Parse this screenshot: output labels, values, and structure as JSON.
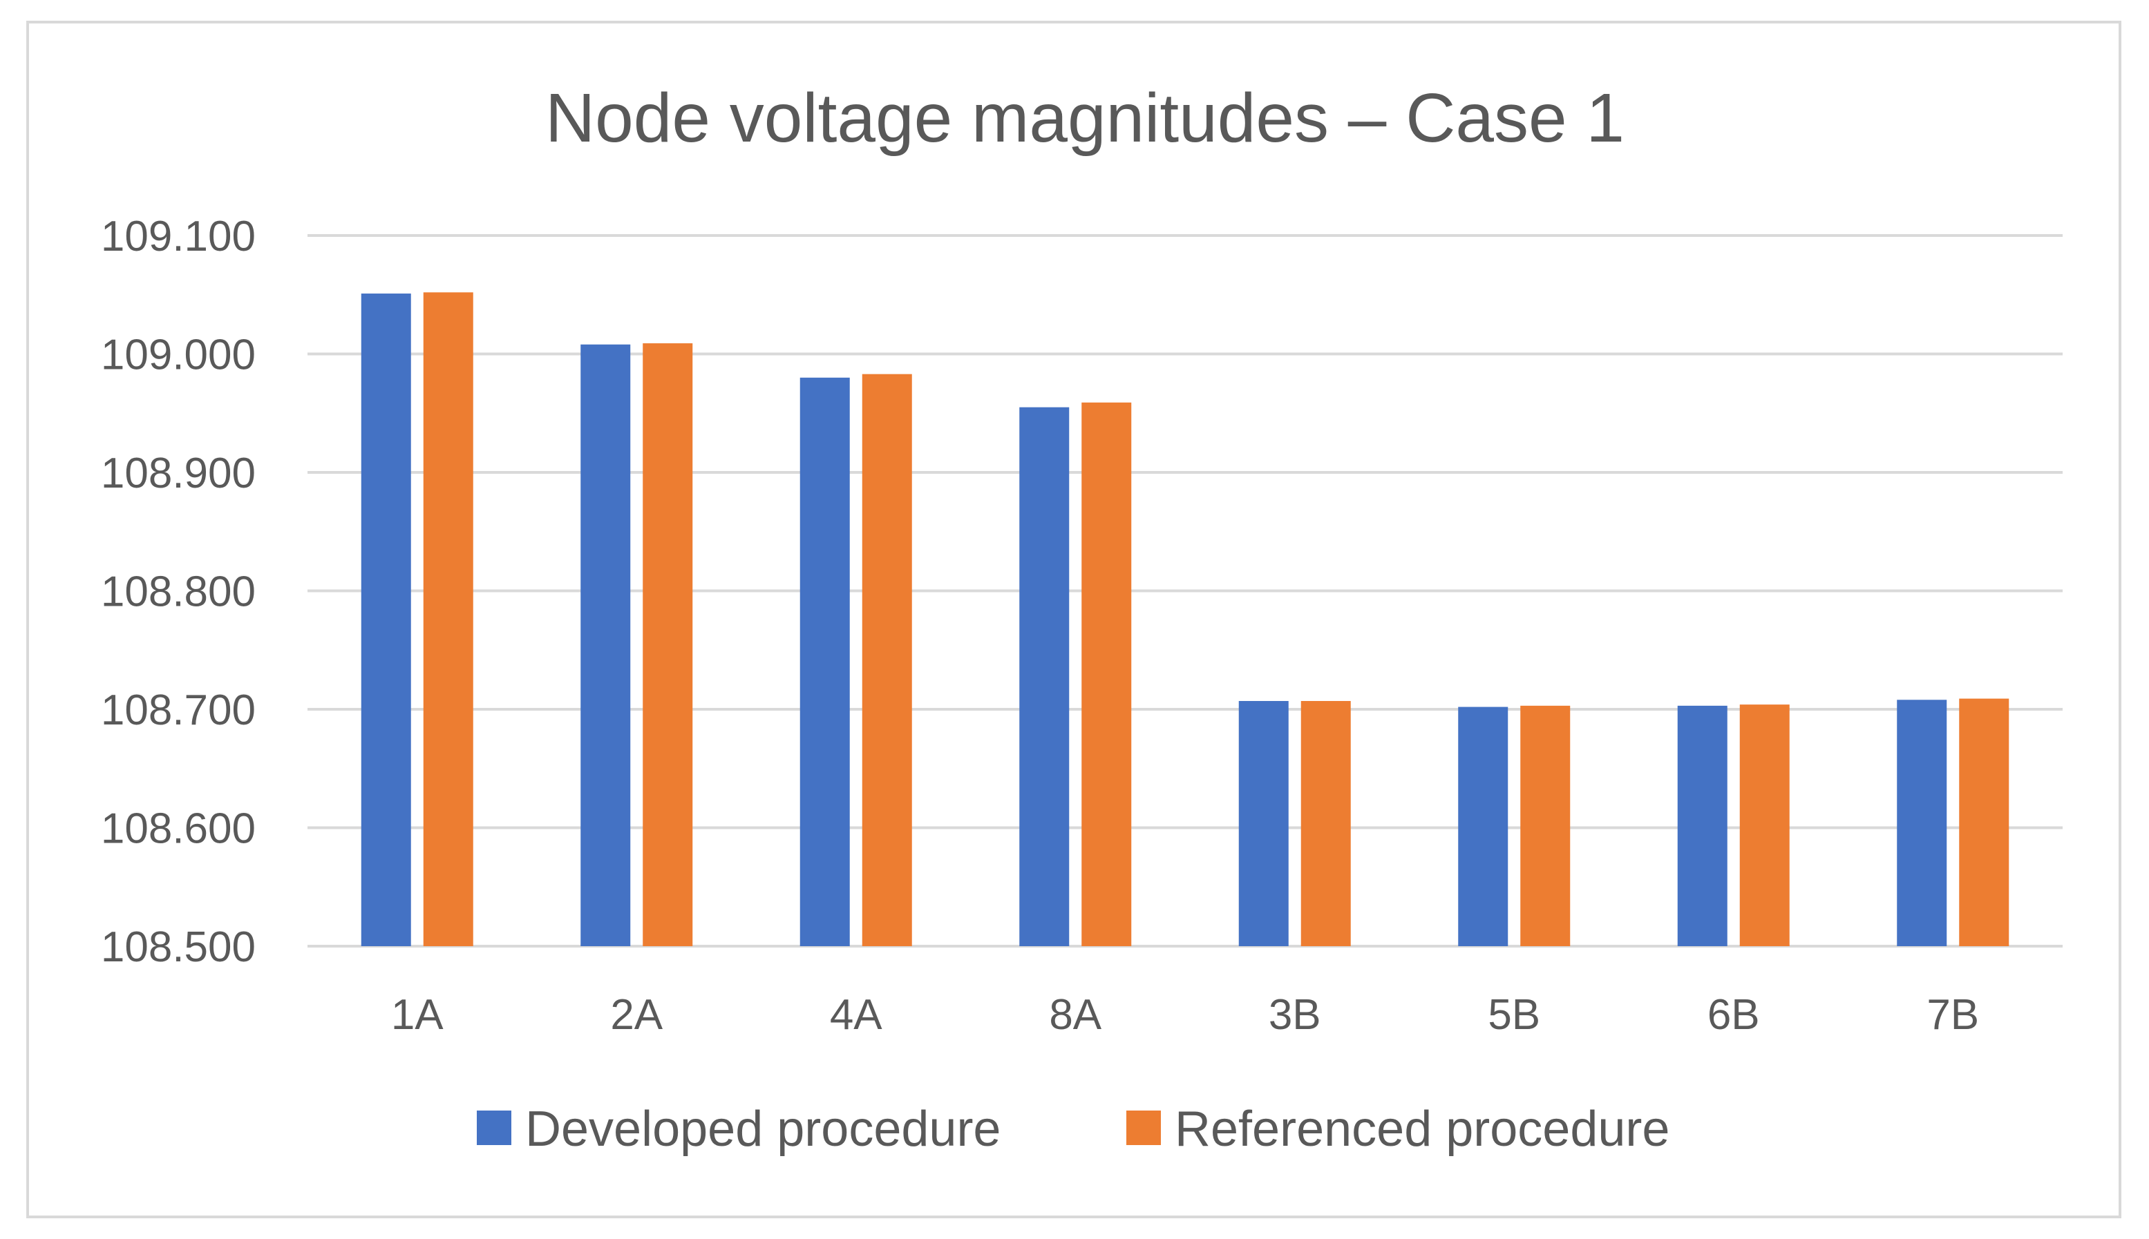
{
  "chart_data": {
    "type": "bar",
    "title": "Node voltage magnitudes – Case 1",
    "xlabel": "",
    "ylabel": "",
    "ylim": [
      108.5,
      109.1
    ],
    "yticks": [
      "108.500",
      "108.600",
      "108.700",
      "108.800",
      "108.900",
      "109.000",
      "109.100"
    ],
    "ytick_values": [
      108.5,
      108.6,
      108.7,
      108.8,
      108.9,
      109.0,
      109.1
    ],
    "grid": true,
    "legend_position": "bottom",
    "categories": [
      "1A",
      "2A",
      "4A",
      "8A",
      "3B",
      "5B",
      "6B",
      "7B"
    ],
    "series": [
      {
        "name": "Developed procedure",
        "color": "#4472c4",
        "values": [
          109.051,
          109.008,
          108.98,
          108.955,
          108.707,
          108.702,
          108.703,
          108.708
        ]
      },
      {
        "name": "Referenced procedure",
        "color": "#ed7d31",
        "values": [
          109.052,
          109.009,
          108.983,
          108.959,
          108.707,
          108.703,
          108.704,
          108.709
        ]
      }
    ]
  },
  "colors": {
    "grid": "#d9d9d9",
    "text": "#595959",
    "frame": "#d9d9d9"
  }
}
